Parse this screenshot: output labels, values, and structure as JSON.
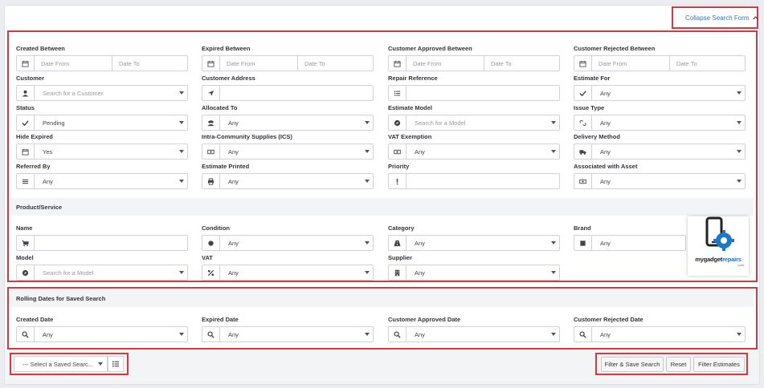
{
  "header": {
    "collapse_label": "Collapse Search Form"
  },
  "fields": {
    "created_between": {
      "label": "Created Between",
      "from": "Date From",
      "to": "Date To"
    },
    "expired_between": {
      "label": "Expired Between",
      "from": "Date From",
      "to": "Date To"
    },
    "customer_approved_between": {
      "label": "Customer Approved Between",
      "from": "Date From",
      "to": "Date To"
    },
    "customer_rejected_between": {
      "label": "Customer Rejected Between",
      "from": "Date From",
      "to": "Date To"
    },
    "customer": {
      "label": "Customer",
      "placeholder": "Search for a Customer"
    },
    "customer_address": {
      "label": "Customer Address",
      "value": ""
    },
    "repair_reference": {
      "label": "Repair Reference",
      "value": ""
    },
    "estimate_for": {
      "label": "Estimate For",
      "value": "Any"
    },
    "status": {
      "label": "Status",
      "value": "Pending"
    },
    "allocated_to": {
      "label": "Allocated To",
      "value": "Any"
    },
    "estimate_model": {
      "label": "Estimate Model",
      "placeholder": "Search for a Model"
    },
    "issue_type": {
      "label": "Issue Type",
      "value": "Any"
    },
    "hide_expired": {
      "label": "Hide Expired",
      "value": "Yes"
    },
    "ics": {
      "label": "Intra-Community Supplies (ICS)",
      "value": "Any"
    },
    "vat_exemption": {
      "label": "VAT Exemption",
      "value": "Any"
    },
    "delivery_method": {
      "label": "Delivery Method",
      "value": "Any"
    },
    "referred_by": {
      "label": "Referred By",
      "value": "Any"
    },
    "estimate_printed": {
      "label": "Estimate Printed",
      "value": "Any"
    },
    "priority": {
      "label": "Priority",
      "value": ""
    },
    "associated_with_asset": {
      "label": "Associated with Asset",
      "value": "Any"
    }
  },
  "product_section": {
    "title": "Product/Service",
    "name": {
      "label": "Name",
      "value": ""
    },
    "condition": {
      "label": "Condition",
      "value": "Any"
    },
    "category": {
      "label": "Category",
      "value": "Any"
    },
    "brand": {
      "label": "Brand",
      "value": "Any"
    },
    "model": {
      "label": "Model",
      "placeholder": "Search for a Model"
    },
    "vat": {
      "label": "VAT",
      "value": "Any"
    },
    "supplier": {
      "label": "Supplier",
      "value": "Any"
    }
  },
  "rolling_section": {
    "title": "Rolling Dates for Saved Search",
    "created_date": {
      "label": "Created Date",
      "value": "Any"
    },
    "expired_date": {
      "label": "Expired Date",
      "value": "Any"
    },
    "customer_approved_date": {
      "label": "Customer Approved Date",
      "value": "Any"
    },
    "customer_rejected_date": {
      "label": "Customer Rejected Date",
      "value": "Any"
    }
  },
  "footer": {
    "saved_search_value": "--- Select a Saved Searc...",
    "filter_save_label": "Filter & Save Search",
    "reset_label": "Reset",
    "filter_label": "Filter Estimates"
  },
  "logo": {
    "brand_a": "mygadget",
    "brand_b": "repairs",
    "suffix": ".com"
  },
  "colors": {
    "accent_red": "#d9363e",
    "link_blue": "#3a72b8",
    "logo_blue": "#1a77c9"
  }
}
